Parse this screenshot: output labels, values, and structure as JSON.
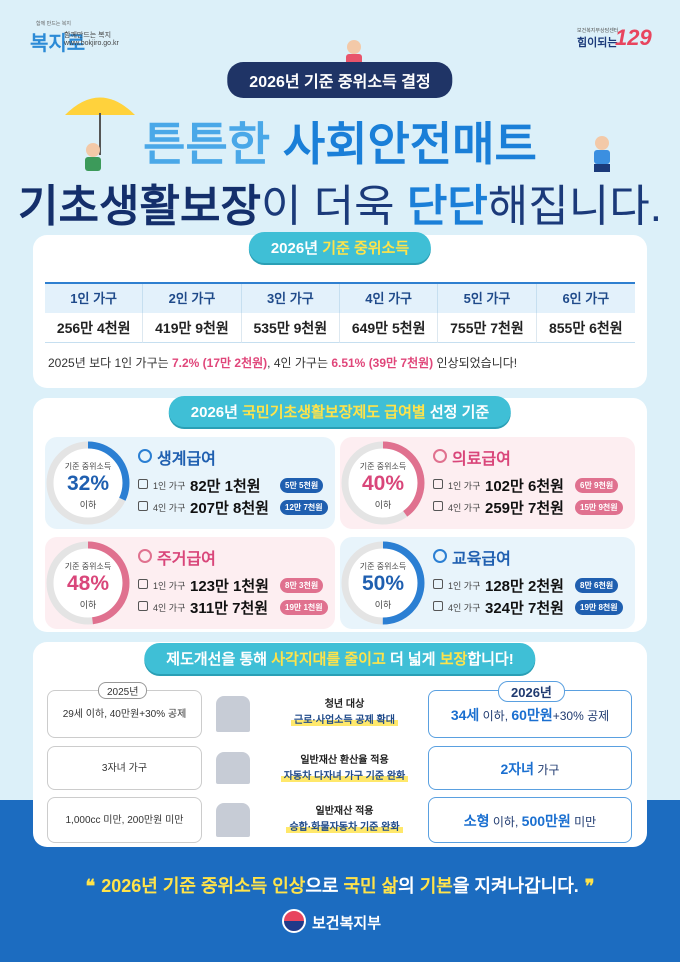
{
  "header": {
    "logo_tagline": "함께 만드는 복지",
    "logo_name": "복지로",
    "logo_slogan": "함께만드는 복지",
    "logo_url": "www.bokjiro.go.kr",
    "hotline_caption": "보건복지부상담센터",
    "hotline_text": "힘이되는",
    "hotline_number": "129"
  },
  "badge": "2026년 기준 중위소득 결정",
  "title": {
    "line1": [
      {
        "text": "튼튼한 ",
        "style": "light"
      },
      {
        "text": "사회안전매트",
        "style": "strong"
      }
    ],
    "line2": [
      {
        "text": "기초생활보장",
        "style": "dark"
      },
      {
        "text": "이 더욱 ",
        "style": "plain"
      },
      {
        "text": "단단",
        "style": "strong"
      },
      {
        "text": "해집니다.",
        "style": "plain"
      }
    ]
  },
  "median_income": {
    "heading": [
      {
        "text": "2026년 ",
        "style": "plain"
      },
      {
        "text": "기준 중위소득",
        "style": "yellow"
      }
    ],
    "columns": [
      {
        "household": "1인 가구",
        "amount": "256만 4천원"
      },
      {
        "household": "2인 가구",
        "amount": "419만 9천원"
      },
      {
        "household": "3인 가구",
        "amount": "535만 9천원"
      },
      {
        "household": "4인 가구",
        "amount": "649만 5천원"
      },
      {
        "household": "5인 가구",
        "amount": "755만 7천원"
      },
      {
        "household": "6인 가구",
        "amount": "855만 6천원"
      }
    ],
    "note": [
      {
        "text": "2025년 보다 1인 가구는 ",
        "style": "plain"
      },
      {
        "text": "7.2% (17만 2천원)",
        "style": "pink"
      },
      {
        "text": ", 4인 가구는 ",
        "style": "plain"
      },
      {
        "text": "6.51% (39만 7천원)",
        "style": "pink"
      },
      {
        "text": " 인상되었습니다!",
        "style": "plain"
      }
    ]
  },
  "benefits": {
    "heading": [
      {
        "text": "2026년 ",
        "style": "plain"
      },
      {
        "text": "국민기초생활보장제도 급여별",
        "style": "yellow"
      },
      {
        "text": " 선정 기준",
        "style": "plain"
      }
    ],
    "items": [
      {
        "theme": "blue",
        "circle_caption": "기준 중위소득",
        "percent": "32%",
        "circle_suffix": "이하",
        "name": "생계급여",
        "rows": [
          {
            "label": "1인 가구",
            "amount": "82만 1천원",
            "increase": "5만 5천원"
          },
          {
            "label": "4인 가구",
            "amount": "207만 8천원",
            "increase": "12만 7천원"
          }
        ]
      },
      {
        "theme": "pink",
        "circle_caption": "기준 중위소득",
        "percent": "40%",
        "circle_suffix": "이하",
        "name": "의료급여",
        "rows": [
          {
            "label": "1인 가구",
            "amount": "102만 6천원",
            "increase": "6만 9천원"
          },
          {
            "label": "4인 가구",
            "amount": "259만 7천원",
            "increase": "15만 9천원"
          }
        ]
      },
      {
        "theme": "pink",
        "circle_caption": "기준 중위소득",
        "percent": "48%",
        "circle_suffix": "이하",
        "name": "주거급여",
        "rows": [
          {
            "label": "1인 가구",
            "amount": "123만 1천원",
            "increase": "8만 3천원"
          },
          {
            "label": "4인 가구",
            "amount": "311만 7천원",
            "increase": "19만 1천원"
          }
        ]
      },
      {
        "theme": "blue",
        "circle_caption": "기준 중위소득",
        "percent": "50%",
        "circle_suffix": "이하",
        "name": "교육급여",
        "rows": [
          {
            "label": "1인 가구",
            "amount": "128만 2천원",
            "increase": "8만 6천원"
          },
          {
            "label": "4인 가구",
            "amount": "324만 7천원",
            "increase": "19만 8천원"
          }
        ]
      }
    ]
  },
  "improvements": {
    "heading": [
      {
        "text": "제도개선을 통해 ",
        "style": "plain"
      },
      {
        "text": "사각지대를 줄이고",
        "style": "yellow"
      },
      {
        "text": " 더 넓게 ",
        "style": "plain"
      },
      {
        "text": "보장",
        "style": "yellow"
      },
      {
        "text": "합니다!",
        "style": "plain"
      }
    ],
    "before_label": "2025년",
    "after_label": "2026년",
    "rows": [
      {
        "before": "29세 이하, 40만원+30% 공제",
        "caption": "청년 대상",
        "detail": "근로·사업소득 공제 확대",
        "after": [
          {
            "text": "34세",
            "style": "strong"
          },
          {
            "text": " 이하, ",
            "style": "plain"
          },
          {
            "text": "60만원",
            "style": "strong"
          },
          {
            "text": "+30% 공제",
            "style": "plain"
          }
        ]
      },
      {
        "before": "3자녀 가구",
        "caption": "일반재산 환산율 적용",
        "detail": "자동차 다자녀 가구 기준 완화",
        "after": [
          {
            "text": "2자녀",
            "style": "strong"
          },
          {
            "text": " 가구",
            "style": "plain"
          }
        ]
      },
      {
        "before": "1,000cc 미만, 200만원 미만",
        "caption": "일반재산 적용",
        "detail": "승합·화물자동차 기준 완화",
        "after": [
          {
            "text": "소형",
            "style": "strong"
          },
          {
            "text": " 이하, ",
            "style": "plain"
          },
          {
            "text": "500만원",
            "style": "strong"
          },
          {
            "text": " 미만",
            "style": "plain"
          }
        ]
      }
    ]
  },
  "footer": {
    "open_quote": "❝",
    "close_quote": "❞",
    "message": [
      {
        "text": "2026년 기준 중위소득 인상",
        "style": "yellow"
      },
      {
        "text": "으로 ",
        "style": "plain"
      },
      {
        "text": "국민 삶",
        "style": "yellow"
      },
      {
        "text": "의 ",
        "style": "plain"
      },
      {
        "text": "기본",
        "style": "yellow"
      },
      {
        "text": "을 지켜나갑니다.",
        "style": "plain"
      }
    ],
    "ministry": "보건복지부"
  }
}
